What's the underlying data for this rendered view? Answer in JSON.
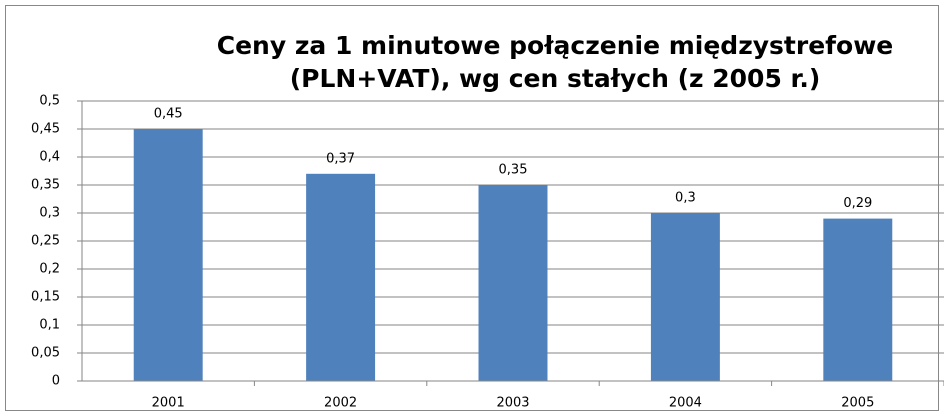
{
  "chart_data": {
    "type": "bar",
    "title": [
      "Ceny za 1 minutowe połączenie międzystrefowe",
      "(PLN+VAT), wg cen stałych (z 2005 r.)"
    ],
    "categories": [
      "2001",
      "2002",
      "2003",
      "2004",
      "2005"
    ],
    "values": [
      0.45,
      0.37,
      0.35,
      0.3,
      0.29
    ],
    "value_labels": [
      "0,45",
      "0,37",
      "0,35",
      "0,3",
      "0,29"
    ],
    "color": "#4f81bd",
    "ylim": [
      0,
      0.5
    ],
    "yticks": [
      0,
      {
        "value": 0.05,
        "label": "0,05"
      },
      {
        "value": 0.1,
        "label": "0,1"
      },
      {
        "value": 0.15,
        "label": "0,15"
      },
      {
        "value": 0.2,
        "label": "0,2"
      },
      {
        "value": 0.25,
        "label": "0,25"
      },
      {
        "value": 0.3,
        "label": "0,3"
      },
      {
        "value": 0.35,
        "label": "0,35"
      },
      {
        "value": 0.4,
        "label": "0,4"
      },
      {
        "value": 0.45,
        "label": "0,45"
      },
      {
        "value": 0.5,
        "label": "0,5"
      }
    ],
    "grid": true
  }
}
